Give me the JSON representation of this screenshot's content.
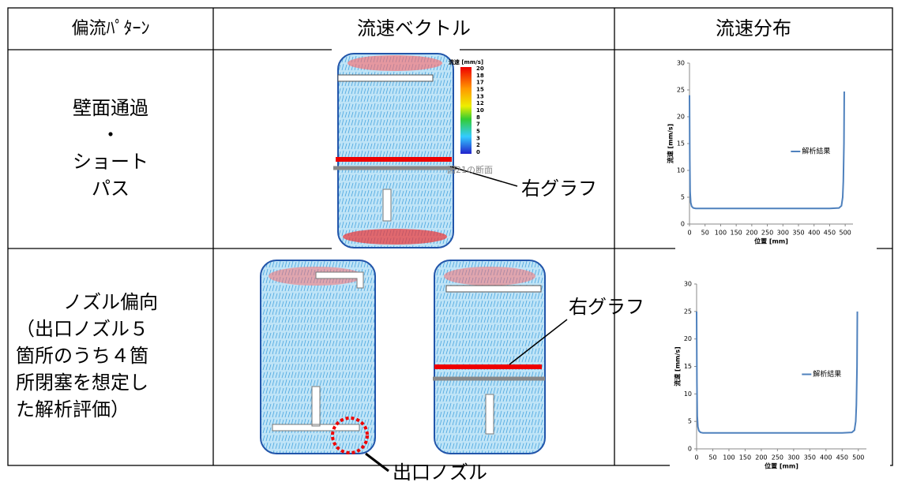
{
  "table": {
    "header": [
      "偏流ﾊﾟﾀｰﾝ",
      "流速ベクトル",
      "流速分布"
    ],
    "rows": [
      {
        "pattern": [
          "壁面通過",
          "・",
          "ショート",
          "パス"
        ]
      },
      {
        "pattern": [
          "ノズル偏向",
          "（出口ノズル５",
          "箇所のうち４箇",
          "所閉塞を想定し",
          "た解析評価）"
        ]
      }
    ]
  },
  "annotations": {
    "right_graph_1": "右グラフ",
    "right_graph_2": "右グラフ",
    "outlet_nozzle": "出口ノズル",
    "section": "図21の断面",
    "colorbar_title": "流速 [mm/s]",
    "colorbar_labels": [
      "20",
      "18",
      "17",
      "15",
      "13",
      "12",
      "10",
      "8",
      "7",
      "5",
      "3",
      "2",
      "0"
    ]
  },
  "chart_data": [
    {
      "type": "line",
      "x_label": "位置 [mm]",
      "y_label": "流速 [mm/s]",
      "xlim": [
        0,
        525
      ],
      "ylim": [
        0,
        30
      ],
      "xticks": [
        0,
        50,
        100,
        150,
        200,
        250,
        300,
        350,
        400,
        450,
        500
      ],
      "yticks": [
        0,
        5,
        10,
        15,
        20,
        25,
        30
      ],
      "x": [
        0,
        1,
        2,
        4,
        7,
        12,
        20,
        50,
        100,
        150,
        200,
        250,
        300,
        350,
        400,
        450,
        480,
        488,
        492,
        494,
        496,
        497
      ],
      "series": [
        {
          "name": "解析結果",
          "color": "#4f81bd",
          "values": [
            24,
            12,
            6,
            4,
            3.3,
            3,
            2.9,
            2.9,
            2.9,
            2.9,
            2.9,
            2.9,
            2.9,
            2.9,
            2.9,
            2.9,
            3,
            3.4,
            5,
            8,
            15,
            24.7
          ]
        }
      ]
    },
    {
      "type": "line",
      "x_label": "位置 [mm]",
      "y_label": "流速 [mm/s]",
      "xlim": [
        0,
        525
      ],
      "ylim": [
        0,
        30
      ],
      "xticks": [
        0,
        50,
        100,
        150,
        200,
        250,
        300,
        350,
        400,
        450,
        500
      ],
      "yticks": [
        0,
        5,
        10,
        15,
        20,
        25,
        30
      ],
      "x": [
        0,
        1,
        2,
        4,
        7,
        12,
        20,
        50,
        100,
        150,
        200,
        250,
        300,
        350,
        400,
        450,
        480,
        488,
        492,
        494,
        496,
        497
      ],
      "series": [
        {
          "name": "解析結果",
          "color": "#4f81bd",
          "values": [
            25,
            12,
            6,
            4,
            3.3,
            3,
            2.9,
            2.9,
            2.9,
            2.9,
            2.9,
            2.9,
            2.9,
            2.9,
            2.9,
            2.9,
            3,
            3.4,
            5,
            8,
            15,
            25
          ]
        }
      ]
    }
  ]
}
